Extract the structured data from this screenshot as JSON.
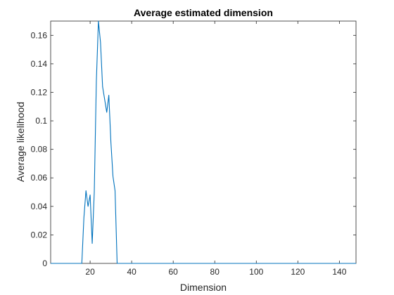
{
  "chart_data": {
    "type": "line",
    "title": "Average estimated dimension",
    "xlabel": "Dimension",
    "ylabel": "Average likelihood",
    "xlim": [
      1,
      148
    ],
    "ylim": [
      0,
      0.17
    ],
    "xticks": [
      20,
      40,
      60,
      80,
      100,
      120,
      140
    ],
    "yticks": [
      0,
      0.02,
      0.04,
      0.06,
      0.08,
      0.1,
      0.12,
      0.14,
      0.16
    ],
    "ytick_labels": [
      "0",
      "0.02",
      "0.04",
      "0.06",
      "0.08",
      "0.1",
      "0.12",
      "0.14",
      "0.16"
    ],
    "grid": false,
    "colors": {
      "line": "#0072bd",
      "axis": "#262626"
    },
    "series": [
      {
        "x": [
          1,
          16,
          17,
          18,
          19,
          20,
          21,
          22,
          23,
          24,
          25,
          26,
          27,
          28,
          29,
          30,
          31,
          32,
          33,
          34,
          148
        ],
        "y": [
          0,
          0,
          0.032,
          0.051,
          0.04,
          0.048,
          0.014,
          0.05,
          0.128,
          0.17,
          0.155,
          0.124,
          0.115,
          0.106,
          0.118,
          0.085,
          0.061,
          0.051,
          0,
          0,
          0
        ]
      }
    ]
  }
}
